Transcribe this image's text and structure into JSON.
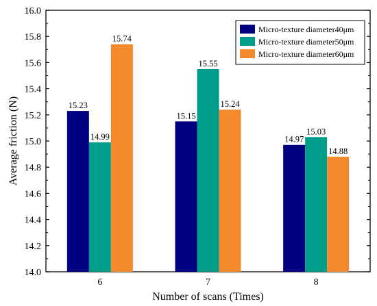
{
  "chart_data": {
    "type": "bar",
    "categories": [
      "6",
      "7",
      "8"
    ],
    "series": [
      {
        "name": "Micro-texture diameter40μm",
        "color": "#000080",
        "values": [
          15.23,
          15.15,
          14.97
        ],
        "labels": [
          "15.23",
          "15.15",
          "14.97"
        ]
      },
      {
        "name": "Micro-texture diameter50μm",
        "color": "#009E8A",
        "values": [
          14.99,
          15.55,
          15.03
        ],
        "labels": [
          "14.99",
          "15.55",
          "15.03"
        ]
      },
      {
        "name": "Micro-texture diameter60μm",
        "color": "#F58A2C",
        "values": [
          15.74,
          15.24,
          14.88
        ],
        "labels": [
          "15.74",
          "15.24",
          "14.88"
        ]
      }
    ],
    "xlabel": "Number of scans (Times)",
    "ylabel": "Average friction (N)",
    "ylim": [
      14.0,
      16.0
    ],
    "yticks": [
      "14.0",
      "14.2",
      "14.4",
      "14.6",
      "14.8",
      "15.0",
      "15.2",
      "15.4",
      "15.6",
      "15.8",
      "16.0"
    ],
    "legend_position": "top-right",
    "grid": false
  }
}
